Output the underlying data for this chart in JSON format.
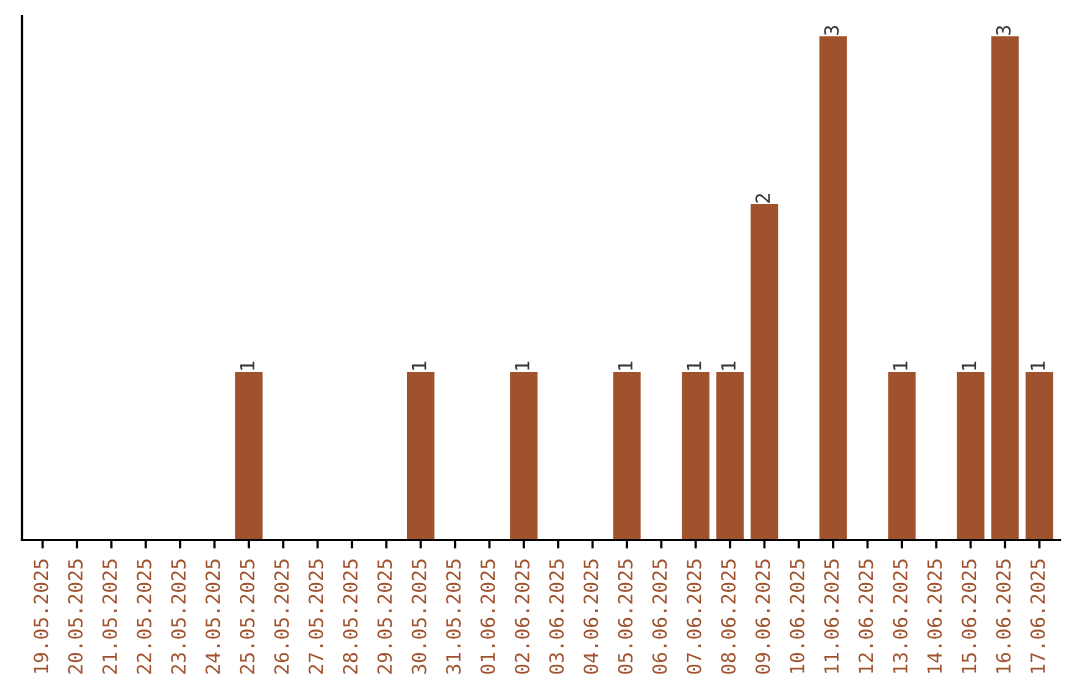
{
  "chart_data": {
    "type": "bar",
    "categories": [
      "19.05.2025",
      "20.05.2025",
      "21.05.2025",
      "22.05.2025",
      "23.05.2025",
      "24.05.2025",
      "25.05.2025",
      "26.05.2025",
      "27.05.2025",
      "28.05.2025",
      "29.05.2025",
      "30.05.2025",
      "31.05.2025",
      "01.06.2025",
      "02.06.2025",
      "03.06.2025",
      "04.06.2025",
      "05.06.2025",
      "06.06.2025",
      "07.06.2025",
      "08.06.2025",
      "09.06.2025",
      "10.06.2025",
      "11.06.2025",
      "12.06.2025",
      "13.06.2025",
      "14.06.2025",
      "15.06.2025",
      "16.06.2025",
      "17.06.2025"
    ],
    "values": [
      0,
      0,
      0,
      0,
      0,
      0,
      1,
      0,
      0,
      0,
      0,
      1,
      0,
      0,
      1,
      0,
      0,
      1,
      0,
      1,
      1,
      2,
      0,
      3,
      0,
      1,
      0,
      1,
      3,
      1
    ],
    "value_labels": [
      null,
      null,
      null,
      null,
      null,
      null,
      "1",
      null,
      null,
      null,
      null,
      "1",
      null,
      null,
      "1",
      null,
      null,
      "1",
      null,
      "1",
      "1",
      "2",
      null,
      "3",
      null,
      "1",
      null,
      "1",
      "3",
      "1"
    ],
    "color": "#a0522d",
    "tick_labels": "x",
    "grid": false,
    "legend": false
  }
}
